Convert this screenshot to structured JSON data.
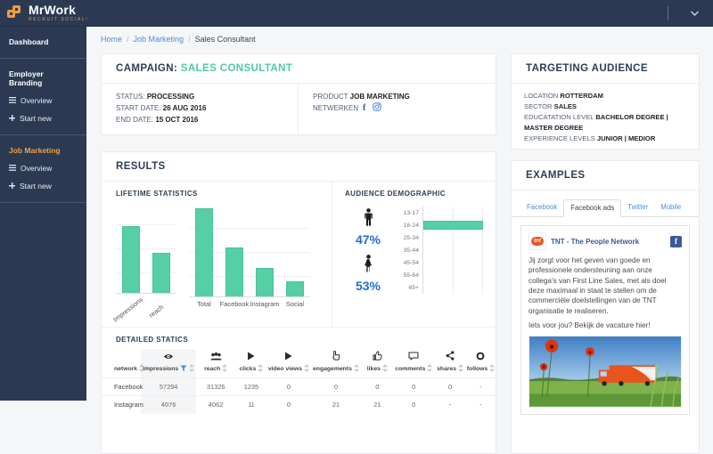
{
  "topbar": {
    "brand": "MrWork",
    "tagline": "RECRUIT SOCIAL!"
  },
  "sidebar": {
    "sections": [
      {
        "label": "Dashboard",
        "active": false,
        "items": []
      },
      {
        "label": "Employer Branding",
        "active": false,
        "items": [
          {
            "icon": "menu",
            "label": "Overview"
          },
          {
            "icon": "plus",
            "label": "Start new"
          }
        ]
      },
      {
        "label": "Job Marketing",
        "active": true,
        "items": [
          {
            "icon": "menu",
            "label": "Overview"
          },
          {
            "icon": "plus",
            "label": "Start new"
          }
        ]
      }
    ]
  },
  "breadcrumb": [
    "Home",
    "Job Marketing",
    "Sales Consultant"
  ],
  "campaign": {
    "title_label": "CAMPAIGN:",
    "title_value": "SALES CONSULTANT",
    "left_fields": [
      {
        "label": "STATUS:",
        "value": "PROCESSING"
      },
      {
        "label": "START DATE:",
        "value": "26 AUG 2016"
      },
      {
        "label": "END DATE:",
        "value": "15 OCT 2016"
      }
    ],
    "product_label": "PRODUCT",
    "product_value": "JOB MARKETING",
    "networks_label": "NETWERKEN",
    "network_icons": [
      "facebook",
      "instagram"
    ]
  },
  "targeting": {
    "title": "TARGETING AUDIENCE",
    "rows": [
      {
        "label": "LOCATION",
        "value": "ROTTERDAM"
      },
      {
        "label": "SECTOR",
        "value": "SALES"
      },
      {
        "label": "EDUCATATION LEVEL",
        "value": "BACHELOR DEGREE | MASTER DEGREE"
      },
      {
        "label": "EXPERIENCE LEVELS",
        "value": "JUNIOR | MEDIOR"
      }
    ]
  },
  "results": {
    "title": "RESULTS",
    "lifetime_title": "LIFETIME STATISTICS",
    "demographic_title": "AUDIENCE DEMOGRAPHIC",
    "male_pct": "47%",
    "female_pct": "53%",
    "detailed_title": "DETAILED STATICS"
  },
  "chart_data": [
    {
      "type": "bar",
      "title": "LIFETIME STATISTICS — left group",
      "categories": [
        "Impressions",
        "reach"
      ],
      "values": [
        76,
        45
      ],
      "ylim": [
        0,
        100
      ],
      "grid": true,
      "color": "#55cfa3",
      "rotated_labels": true
    },
    {
      "type": "bar",
      "title": "LIFETIME STATISTICS — right group",
      "categories": [
        "Total",
        "Facebook",
        "Instagram",
        "Social"
      ],
      "values": [
        100,
        56,
        32,
        17
      ],
      "ylim": [
        0,
        100
      ],
      "grid": true,
      "color": "#55cfa3",
      "rotated_labels": false
    },
    {
      "type": "bar",
      "orientation": "horizontal",
      "title": "AUDIENCE DEMOGRAPHIC",
      "categories": [
        "13-17",
        "18-24",
        "25-34",
        "35-44",
        "45-54",
        "55-64",
        "65+"
      ],
      "values": [
        0,
        100,
        0,
        0,
        0,
        0,
        0
      ],
      "annotations": {
        "male": "47%",
        "female": "53%"
      },
      "color": "#55cfa3",
      "grid": true
    }
  ],
  "table": {
    "columns": [
      {
        "label": "network",
        "icon": null,
        "filtered": false
      },
      {
        "label": "impressions",
        "icon": "eye",
        "filtered": true
      },
      {
        "label": "reach",
        "icon": "people",
        "filtered": false
      },
      {
        "label": "clicks",
        "icon": "play",
        "filtered": false
      },
      {
        "label": "video views",
        "icon": "play",
        "filtered": false
      },
      {
        "label": "engagements",
        "icon": "hand",
        "filtered": false
      },
      {
        "label": "likes",
        "icon": "thumb",
        "filtered": false
      },
      {
        "label": "comments",
        "icon": "comment",
        "filtered": false
      },
      {
        "label": "shares",
        "icon": "share",
        "filtered": false
      },
      {
        "label": "follows",
        "icon": "circle",
        "filtered": false
      }
    ],
    "rows": [
      {
        "network": "Facebook",
        "values": [
          "57294",
          "31326",
          "1235",
          "0",
          "0",
          "0",
          "0",
          "0",
          "-"
        ]
      },
      {
        "network": "Instagram",
        "values": [
          "4076",
          "4062",
          "11",
          "0",
          "21",
          "21",
          "0",
          "-",
          "-"
        ]
      }
    ]
  },
  "examples": {
    "title": "EXAMPLES",
    "tabs": [
      {
        "label": "Facebook",
        "active": false
      },
      {
        "label": "Facebook ads",
        "active": true
      },
      {
        "label": "Twitter",
        "active": false
      },
      {
        "label": "Mobile",
        "active": false
      }
    ],
    "ad": {
      "logo_text": "tnt",
      "page_name": "TNT - The People Network",
      "body": "Jij zorgt voor het geven van goede en professionele ondersteuning aan onze collega's van First Line Sales, met als doel deze maximaal in staat te stellen om de commerciële doelstellingen van de TNT organisatie te realiseren.",
      "cta": "Iets voor jou? Bekijk de vacature hier!"
    }
  },
  "colors": {
    "navy": "#2b3a52",
    "accent_green": "#4ecb9a",
    "bar_teal": "#55cfa3",
    "orange": "#efa03f",
    "link_blue": "#4a8fd6",
    "stat_blue": "#1e6fd6"
  }
}
